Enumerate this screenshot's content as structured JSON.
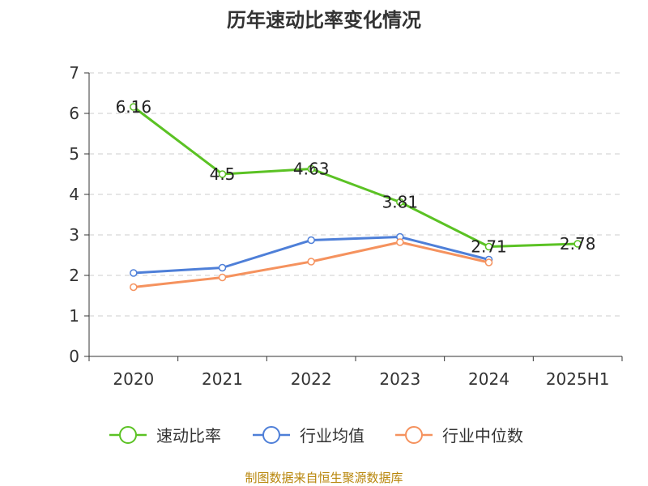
{
  "chart_data": {
    "type": "line",
    "title": "历年速动比率变化情况",
    "categories": [
      "2020",
      "2021",
      "2022",
      "2023",
      "2024",
      "2025H1"
    ],
    "ylim": [
      0,
      7
    ],
    "yticks": [
      "0",
      "1",
      "2",
      "3",
      "4",
      "5",
      "6",
      "7"
    ],
    "grid": true,
    "legend_position": "bottom",
    "series": [
      {
        "name": "速动比率",
        "color": "#5bc224",
        "values": [
          6.16,
          4.5,
          4.63,
          3.81,
          2.71,
          2.78
        ],
        "labels": [
          "6.16",
          "4.5",
          "4.63",
          "3.81",
          "2.71",
          "2.78"
        ]
      },
      {
        "name": "行业均值",
        "color": "#4e7fd8",
        "values": [
          2.06,
          2.19,
          2.87,
          2.95,
          2.39,
          null
        ]
      },
      {
        "name": "行业中位数",
        "color": "#f5925e",
        "values": [
          1.71,
          1.95,
          2.34,
          2.82,
          2.32,
          null
        ]
      }
    ],
    "source": "制图数据来自恒生聚源数据库"
  }
}
